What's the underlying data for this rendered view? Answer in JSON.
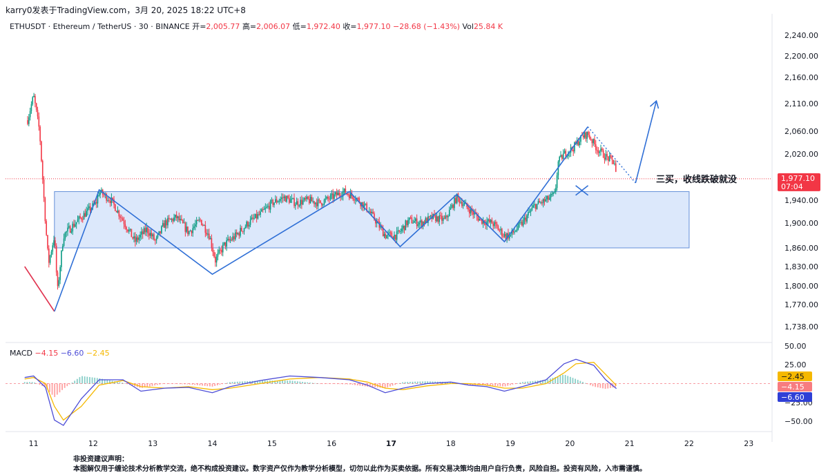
{
  "watermark": "karry0发表于TradingView.com，3月 20, 2025 18:22 UTC+8",
  "header": {
    "symbol": "ETHUSDT · Ethereum / TetherUS · 30 · BINANCE",
    "open_label": "开=",
    "open": "2,005.77",
    "high_label": "高=",
    "high": "2,006.07",
    "low_label": "低=",
    "low": "1,972.40",
    "close_label": "收=",
    "close": "1,977.10",
    "change": "−28.68 (−1.43%)",
    "vol_label": "Vol",
    "vol": "25.84 K"
  },
  "colors": {
    "up": "#089981",
    "down": "#f23645",
    "zone_fill": "#dbe7fb",
    "zone_stroke": "#5b8ad6",
    "wave": "#2f6fd6",
    "price_tag": "#f23645",
    "macd_line": "#4b4bd6",
    "signal_line": "#f5b800"
  },
  "chart_data": [
    {
      "type": "line",
      "title": "ETHUSDT · 30",
      "x_ticks": [
        "11",
        "12",
        "13",
        "14",
        "15",
        "16",
        "17",
        "18",
        "19",
        "20",
        "21",
        "22",
        "23"
      ],
      "y_ticks": [
        "2,240.00",
        "2,200.00",
        "2,160.00",
        "2,110.00",
        "2,060.00",
        "2,020.00",
        "1,940.00",
        "1,900.00",
        "1,860.00",
        "1,830.00",
        "1,800.00",
        "1,770.00",
        "1,738.00"
      ],
      "ylim": [
        1738,
        2240
      ],
      "series": [
        {
          "values": [
            [
              10.9,
              2080
            ],
            [
              11.0,
              2125
            ],
            [
              11.1,
              2060
            ],
            [
              11.2,
              1900
            ],
            [
              11.25,
              1835
            ],
            [
              11.35,
              1880
            ],
            [
              11.4,
              1790
            ],
            [
              11.5,
              1880
            ],
            [
              11.7,
              1900
            ],
            [
              11.9,
              1920
            ],
            [
              12.05,
              1935
            ],
            [
              12.1,
              1955
            ],
            [
              12.3,
              1940
            ],
            [
              12.5,
              1905
            ],
            [
              12.7,
              1870
            ],
            [
              12.9,
              1890
            ],
            [
              13.05,
              1870
            ],
            [
              13.2,
              1900
            ],
            [
              13.4,
              1910
            ],
            [
              13.6,
              1885
            ],
            [
              13.8,
              1905
            ],
            [
              13.95,
              1880
            ],
            [
              14.05,
              1840
            ],
            [
              14.2,
              1865
            ],
            [
              14.4,
              1880
            ],
            [
              14.6,
              1900
            ],
            [
              14.8,
              1915
            ],
            [
              15.0,
              1935
            ],
            [
              15.2,
              1945
            ],
            [
              15.4,
              1935
            ],
            [
              15.6,
              1940
            ],
            [
              15.8,
              1935
            ],
            [
              16.0,
              1945
            ],
            [
              16.2,
              1955
            ],
            [
              16.4,
              1945
            ],
            [
              16.6,
              1925
            ],
            [
              16.8,
              1895
            ],
            [
              16.9,
              1880
            ],
            [
              17.1,
              1880
            ],
            [
              17.3,
              1905
            ],
            [
              17.5,
              1900
            ],
            [
              17.7,
              1910
            ],
            [
              17.9,
              1905
            ],
            [
              18.1,
              1945
            ],
            [
              18.3,
              1925
            ],
            [
              18.5,
              1905
            ],
            [
              18.7,
              1900
            ],
            [
              18.9,
              1880
            ],
            [
              19.0,
              1880
            ],
            [
              19.2,
              1900
            ],
            [
              19.4,
              1930
            ],
            [
              19.6,
              1940
            ],
            [
              19.75,
              1950
            ],
            [
              19.8,
              2005
            ],
            [
              19.9,
              2020
            ],
            [
              20.05,
              2030
            ],
            [
              20.2,
              2050
            ],
            [
              20.3,
              2055
            ],
            [
              20.45,
              2030
            ],
            [
              20.6,
              2015
            ],
            [
              20.75,
              2005
            ],
            [
              20.78,
              1977.1
            ]
          ]
        }
      ],
      "price_tag": {
        "value": "1,977.10",
        "countdown": "07:04",
        "level": 1977.1
      },
      "drawings": {
        "consolidation_zone": {
          "x": [
            11.35,
            22.0
          ],
          "y": [
            1860,
            1955
          ]
        },
        "wave": [
          [
            10.85,
            1830
          ],
          [
            11.35,
            1760
          ],
          [
            12.1,
            1958
          ],
          [
            14.0,
            1818
          ],
          [
            16.3,
            1955
          ],
          [
            17.15,
            1862
          ],
          [
            18.1,
            1950
          ],
          [
            18.9,
            1870
          ],
          [
            20.3,
            2068
          ]
        ],
        "lead_in": [
          [
            10.85,
            1830
          ],
          [
            11.35,
            1760
          ]
        ],
        "dotted_projection": [
          [
            20.3,
            2068
          ],
          [
            21.1,
            1970
          ]
        ],
        "arrow": [
          [
            21.1,
            1970
          ],
          [
            21.45,
            2115
          ]
        ],
        "x_mark": {
          "x": 20.2,
          "y": 1957
        },
        "annotation": "三买，收线跌破就没"
      }
    },
    {
      "type": "line",
      "title": "MACD",
      "labels": {
        "name": "MACD",
        "histogram": "−4.15",
        "macd": "−6.60",
        "signal": "−2.45"
      },
      "y_ticks": [
        "50.00",
        "25.00",
        "−25.00",
        "−50.00"
      ],
      "ylim": [
        -65,
        55
      ],
      "series": [
        {
          "values": [
            [
              10.85,
              8
            ],
            [
              11.0,
              10
            ],
            [
              11.2,
              -5
            ],
            [
              11.35,
              -48
            ],
            [
              11.5,
              -55
            ],
            [
              11.8,
              -20
            ],
            [
              12.1,
              5
            ],
            [
              12.5,
              5
            ],
            [
              12.8,
              -10
            ],
            [
              13.2,
              -6
            ],
            [
              13.6,
              -5
            ],
            [
              14.0,
              -12
            ],
            [
              14.3,
              -4
            ],
            [
              14.8,
              4
            ],
            [
              15.3,
              10
            ],
            [
              15.8,
              8
            ],
            [
              16.3,
              5
            ],
            [
              16.6,
              -2
            ],
            [
              16.9,
              -12
            ],
            [
              17.2,
              -6
            ],
            [
              17.6,
              0
            ],
            [
              18.0,
              2
            ],
            [
              18.3,
              -2
            ],
            [
              18.6,
              -4
            ],
            [
              18.9,
              -10
            ],
            [
              19.2,
              -4
            ],
            [
              19.6,
              5
            ],
            [
              19.9,
              26
            ],
            [
              20.1,
              32
            ],
            [
              20.4,
              24
            ],
            [
              20.6,
              5
            ],
            [
              20.78,
              -6.6
            ]
          ]
        },
        {
          "values": [
            [
              10.85,
              6
            ],
            [
              11.0,
              8
            ],
            [
              11.2,
              0
            ],
            [
              11.35,
              -30
            ],
            [
              11.5,
              -48
            ],
            [
              11.8,
              -30
            ],
            [
              12.1,
              -2
            ],
            [
              12.5,
              4
            ],
            [
              12.8,
              -4
            ],
            [
              13.2,
              -6
            ],
            [
              13.6,
              -4
            ],
            [
              14.0,
              -8
            ],
            [
              14.3,
              -6
            ],
            [
              14.8,
              0
            ],
            [
              15.3,
              6
            ],
            [
              15.8,
              8
            ],
            [
              16.3,
              6
            ],
            [
              16.6,
              2
            ],
            [
              16.9,
              -6
            ],
            [
              17.2,
              -8
            ],
            [
              17.6,
              -3
            ],
            [
              18.0,
              0
            ],
            [
              18.3,
              0
            ],
            [
              18.6,
              -2
            ],
            [
              18.9,
              -6
            ],
            [
              19.2,
              -6
            ],
            [
              19.6,
              0
            ],
            [
              19.9,
              14
            ],
            [
              20.1,
              26
            ],
            [
              20.4,
              28
            ],
            [
              20.6,
              12
            ],
            [
              20.78,
              -2.45
            ]
          ]
        }
      ]
    }
  ],
  "footer": {
    "line1": "非投资建议声明：",
    "line2": "本图解仅用于缠论技术分析教学交流，绝不构成投资建议。数字资产仅作为教学分析模型，切勿以此作为买卖依据。所有交易决策均由用户自行负责，风险自担。投资有风险，入市需谨慎。"
  }
}
